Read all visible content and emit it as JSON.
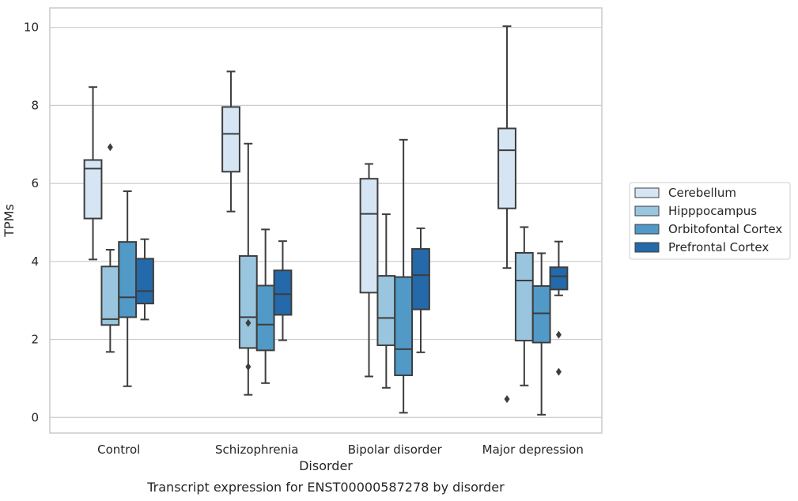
{
  "caption": "Transcript expression for ENST00000587278 by disorder",
  "chart_data": {
    "type": "box",
    "title": "",
    "xlabel": "Disorder",
    "ylabel": "TPMs",
    "ylim": [
      -0.4,
      10.5
    ],
    "yticks": [
      0,
      2,
      4,
      6,
      8,
      10
    ],
    "grid": "horizontal",
    "legend_position": "outside-right",
    "categories": [
      "Control",
      "Schizophrenia",
      "Bipolar disorder",
      "Major depression"
    ],
    "series": [
      {
        "name": "Cerebellum",
        "color": "#d6e5f4",
        "boxes": [
          {
            "whislo": 4.05,
            "q1": 5.1,
            "med": 6.38,
            "q3": 6.6,
            "whishi": 8.47,
            "fliers": []
          },
          {
            "whislo": 5.28,
            "q1": 6.3,
            "med": 7.27,
            "q3": 7.96,
            "whishi": 8.87,
            "fliers": []
          },
          {
            "whislo": 1.05,
            "q1": 3.2,
            "med": 5.22,
            "q3": 6.12,
            "whishi": 6.5,
            "fliers": []
          },
          {
            "whislo": 3.83,
            "q1": 5.36,
            "med": 6.85,
            "q3": 7.41,
            "whishi": 10.03,
            "fliers": [
              0.47
            ]
          }
        ]
      },
      {
        "name": "Hipppocampus",
        "color": "#9ac5de",
        "boxes": [
          {
            "whislo": 1.68,
            "q1": 2.37,
            "med": 2.52,
            "q3": 3.87,
            "whishi": 4.3,
            "fliers": [
              6.93
            ]
          },
          {
            "whislo": 0.58,
            "q1": 1.78,
            "med": 2.57,
            "q3": 4.14,
            "whishi": 7.02,
            "fliers": [
              2.42,
              1.3
            ]
          },
          {
            "whislo": 0.76,
            "q1": 1.85,
            "med": 2.55,
            "q3": 3.63,
            "whishi": 5.21,
            "fliers": []
          },
          {
            "whislo": 0.82,
            "q1": 1.97,
            "med": 3.51,
            "q3": 4.22,
            "whishi": 4.88,
            "fliers": []
          }
        ]
      },
      {
        "name": "Orbitofontal Cortex",
        "color": "#5199c7",
        "boxes": [
          {
            "whislo": 0.8,
            "q1": 2.57,
            "med": 3.08,
            "q3": 4.5,
            "whishi": 5.8,
            "fliers": []
          },
          {
            "whislo": 0.88,
            "q1": 1.72,
            "med": 2.38,
            "q3": 3.38,
            "whishi": 4.82,
            "fliers": []
          },
          {
            "whislo": 0.12,
            "q1": 1.08,
            "med": 1.75,
            "q3": 3.6,
            "whishi": 7.12,
            "fliers": []
          },
          {
            "whislo": 0.07,
            "q1": 1.92,
            "med": 2.67,
            "q3": 3.37,
            "whishi": 4.21,
            "fliers": []
          }
        ]
      },
      {
        "name": "Prefrontal Cortex",
        "color": "#2469a9",
        "boxes": [
          {
            "whislo": 2.51,
            "q1": 2.92,
            "med": 3.24,
            "q3": 4.07,
            "whishi": 4.57,
            "fliers": []
          },
          {
            "whislo": 1.98,
            "q1": 2.63,
            "med": 3.16,
            "q3": 3.77,
            "whishi": 4.52,
            "fliers": []
          },
          {
            "whislo": 1.67,
            "q1": 2.77,
            "med": 3.65,
            "q3": 4.32,
            "whishi": 4.85,
            "fliers": []
          },
          {
            "whislo": 3.13,
            "q1": 3.28,
            "med": 3.62,
            "q3": 3.85,
            "whishi": 4.51,
            "fliers": [
              2.12,
              1.17
            ]
          }
        ]
      }
    ]
  }
}
